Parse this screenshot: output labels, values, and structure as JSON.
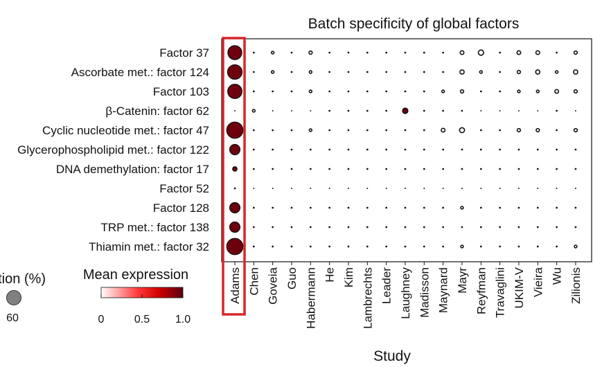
{
  "chart_data": {
    "type": "scatter",
    "title": "Batch specificity of global factors",
    "xlabel": "Study",
    "ylabel": "",
    "categories": [
      "Adams",
      "Chen",
      "Goveia",
      "Guo",
      "Habermann",
      "He",
      "Kim",
      "Lambrechts",
      "Leader",
      "Laughney",
      "Madisson",
      "Maynard",
      "Mayr",
      "Reyfman",
      "Travaglini",
      "UKIM-V",
      "Vieira",
      "Wu",
      "Zilionis"
    ],
    "rows": [
      "Factor 37",
      "Ascorbate met.: factor 124",
      "Factor 103",
      "β-Catenin: factor 62",
      "Cyclic nucleotide met.: factor 47",
      "Glycerophospholipid met.: factor 122",
      "DNA demethylation: factor 17",
      "Factor 52",
      "Factor 128",
      "TRP met.: factor 138",
      "Thiamin met.: factor 32"
    ],
    "highlight_category": "Adams",
    "highlight_color": "#d62728",
    "size_legend": {
      "title": "Fraction (%)",
      "values": [
        60
      ]
    },
    "color_legend": {
      "title": "Mean expression",
      "ticks": [
        "0",
        "0.5",
        "1.0"
      ],
      "min": 0,
      "max": 1.0,
      "colors": [
        "#ffffff",
        "#ff3a3a",
        "#d40000",
        "#5a0010"
      ]
    },
    "size_matrix": [
      [
        55,
        1,
        2,
        1,
        3,
        1,
        1,
        1,
        1,
        1,
        1,
        1,
        4,
        8,
        1,
        4,
        4,
        1,
        3
      ],
      [
        60,
        1,
        2,
        1,
        2,
        1,
        1,
        1,
        1,
        1,
        1,
        1,
        5,
        2,
        1,
        3,
        5,
        2,
        5
      ],
      [
        58,
        1,
        1,
        1,
        2,
        1,
        1,
        1,
        1,
        1,
        1,
        2,
        3,
        1,
        1,
        2,
        2,
        4,
        3
      ],
      [
        0.5,
        2,
        0.5,
        0.5,
        0.5,
        1,
        1,
        1,
        1,
        8,
        1,
        1,
        1,
        0.5,
        0.5,
        0.5,
        0.5,
        1,
        0.5
      ],
      [
        75,
        1,
        1,
        1,
        2,
        1,
        1,
        1,
        1,
        1,
        1,
        4,
        7,
        1,
        1,
        3,
        3,
        1,
        3
      ],
      [
        30,
        1,
        1,
        1,
        1,
        1,
        1,
        1,
        1,
        1,
        1,
        1,
        1,
        1,
        1,
        1,
        1,
        1,
        1
      ],
      [
        5,
        1,
        1,
        1,
        1,
        1,
        1,
        1,
        1,
        1,
        1,
        1,
        1,
        1,
        1,
        1,
        1,
        1,
        1
      ],
      [
        1,
        0.5,
        0.5,
        0.5,
        0.5,
        0.5,
        0.5,
        0.5,
        0.5,
        0.5,
        0.5,
        0.5,
        0.5,
        0.5,
        0.5,
        0.5,
        0.5,
        0.5,
        0.5
      ],
      [
        30,
        1,
        1,
        1,
        1,
        1,
        1,
        1,
        1,
        1,
        1,
        1,
        2,
        1,
        1,
        1,
        1,
        1,
        1
      ],
      [
        30,
        1,
        1,
        1,
        1,
        1,
        1,
        1,
        1,
        1,
        1,
        1,
        1,
        1,
        1,
        1,
        1,
        1,
        1
      ],
      [
        75,
        1,
        1,
        1,
        1,
        1,
        1,
        1,
        1,
        1,
        1,
        1,
        2,
        1,
        1,
        1,
        1,
        1,
        2
      ]
    ],
    "color_matrix": [
      [
        0.95,
        0,
        0,
        0,
        0,
        0,
        0,
        0,
        0,
        0,
        0,
        0,
        0,
        0,
        0,
        0,
        0,
        0,
        0
      ],
      [
        0.95,
        0,
        0,
        0,
        0,
        0,
        0,
        0,
        0,
        0,
        0,
        0,
        0,
        0,
        0,
        0,
        0,
        0,
        0
      ],
      [
        0.95,
        0,
        0,
        0,
        0,
        0,
        0,
        0,
        0,
        0,
        0,
        0,
        0,
        0,
        0,
        0,
        0,
        0,
        0
      ],
      [
        0,
        0,
        0,
        0,
        0,
        0,
        0,
        0,
        0,
        0.95,
        0,
        0,
        0,
        0,
        0,
        0,
        0,
        0,
        0
      ],
      [
        0.95,
        0,
        0,
        0,
        0,
        0,
        0,
        0,
        0,
        0,
        0,
        0,
        0,
        0,
        0,
        0,
        0,
        0,
        0
      ],
      [
        0.95,
        0,
        0,
        0,
        0,
        0,
        0,
        0,
        0,
        0,
        0,
        0,
        0,
        0,
        0,
        0,
        0,
        0,
        0
      ],
      [
        0.9,
        0,
        0,
        0,
        0,
        0,
        0,
        0,
        0,
        0,
        0,
        0,
        0,
        0,
        0,
        0,
        0,
        0,
        0
      ],
      [
        0,
        0,
        0,
        0,
        0,
        0,
        0,
        0,
        0,
        0,
        0,
        0,
        0,
        0,
        0,
        0,
        0,
        0,
        0
      ],
      [
        0.95,
        0,
        0,
        0,
        0,
        0,
        0,
        0,
        0,
        0,
        0,
        0,
        0,
        0,
        0,
        0,
        0,
        0,
        0
      ],
      [
        0.95,
        0,
        0,
        0,
        0,
        0,
        0,
        0,
        0,
        0,
        0,
        0,
        0,
        0,
        0,
        0,
        0,
        0,
        0
      ],
      [
        0.95,
        0,
        0,
        0,
        0,
        0,
        0,
        0,
        0,
        0,
        0,
        0,
        0,
        0,
        0,
        0,
        0,
        0,
        0
      ]
    ]
  }
}
